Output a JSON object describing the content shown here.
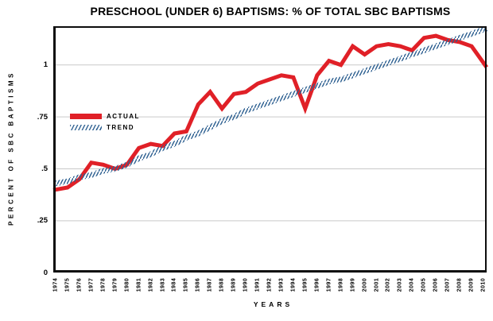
{
  "title": "PRESCHOOL (UNDER 6) BAPTISMS: % OF TOTAL SBC BAPTISMS",
  "legend": {
    "actual_label": "ACTUAL",
    "trend_label": "TREND"
  },
  "y_axis": {
    "title": "PERCENT OF SBC BAPTISMS",
    "ticks": [
      {
        "label": "0",
        "value": 0
      },
      {
        "label": ".25",
        "value": 0.25
      },
      {
        "label": ".5",
        "value": 0.5
      },
      {
        "label": ".75",
        "value": 0.75
      },
      {
        "label": "1",
        "value": 1
      }
    ]
  },
  "x_axis": {
    "title": "YEARS"
  },
  "colors": {
    "actual": "#e02027",
    "trend": "#2e6091",
    "grid": "#c9c9c9",
    "frame": "#0d0d0d",
    "background": "#ffffff",
    "text": "#000000"
  },
  "chart_data": {
    "type": "line",
    "title": "PRESCHOOL (UNDER 6) BAPTISMS: % OF TOTAL SBC BAPTISMS",
    "xlabel": "YEARS",
    "ylabel": "PERCENT OF SBC BAPTISMS",
    "x": [
      1974,
      1975,
      1976,
      1977,
      1978,
      1979,
      1980,
      1981,
      1982,
      1983,
      1984,
      1985,
      1986,
      1987,
      1988,
      1989,
      1990,
      1991,
      1992,
      1993,
      1994,
      1995,
      1996,
      1997,
      1998,
      1999,
      2000,
      2001,
      2002,
      2003,
      2004,
      2005,
      2006,
      2007,
      2008,
      2009,
      2010
    ],
    "series": [
      {
        "name": "ACTUAL",
        "style": "solid-thick",
        "color": "#e02027",
        "values": [
          0.4,
          0.41,
          0.45,
          0.53,
          0.52,
          0.5,
          0.52,
          0.6,
          0.62,
          0.61,
          0.67,
          0.68,
          0.81,
          0.87,
          0.79,
          0.86,
          0.87,
          0.91,
          0.93,
          0.95,
          0.94,
          0.79,
          0.95,
          1.02,
          1.0,
          1.09,
          1.05,
          1.09,
          1.1,
          1.09,
          1.07,
          1.13,
          1.14,
          1.12,
          1.11,
          1.09,
          1.01
        ]
      },
      {
        "name": "TREND",
        "style": "hatched",
        "color": "#2e6091",
        "values": [
          0.43,
          0.44,
          0.46,
          0.47,
          0.49,
          0.5,
          0.52,
          0.55,
          0.57,
          0.6,
          0.62,
          0.65,
          0.67,
          0.7,
          0.73,
          0.75,
          0.78,
          0.8,
          0.82,
          0.84,
          0.86,
          0.88,
          0.9,
          0.92,
          0.93,
          0.95,
          0.97,
          0.99,
          1.01,
          1.03,
          1.05,
          1.07,
          1.09,
          1.11,
          1.13,
          1.15,
          1.17
        ]
      }
    ],
    "ylim": [
      0,
      1.19
    ],
    "yticks": [
      0,
      0.25,
      0.5,
      0.75,
      1
    ],
    "grid": "horizontal",
    "legend_position": "upper-left-inside"
  }
}
